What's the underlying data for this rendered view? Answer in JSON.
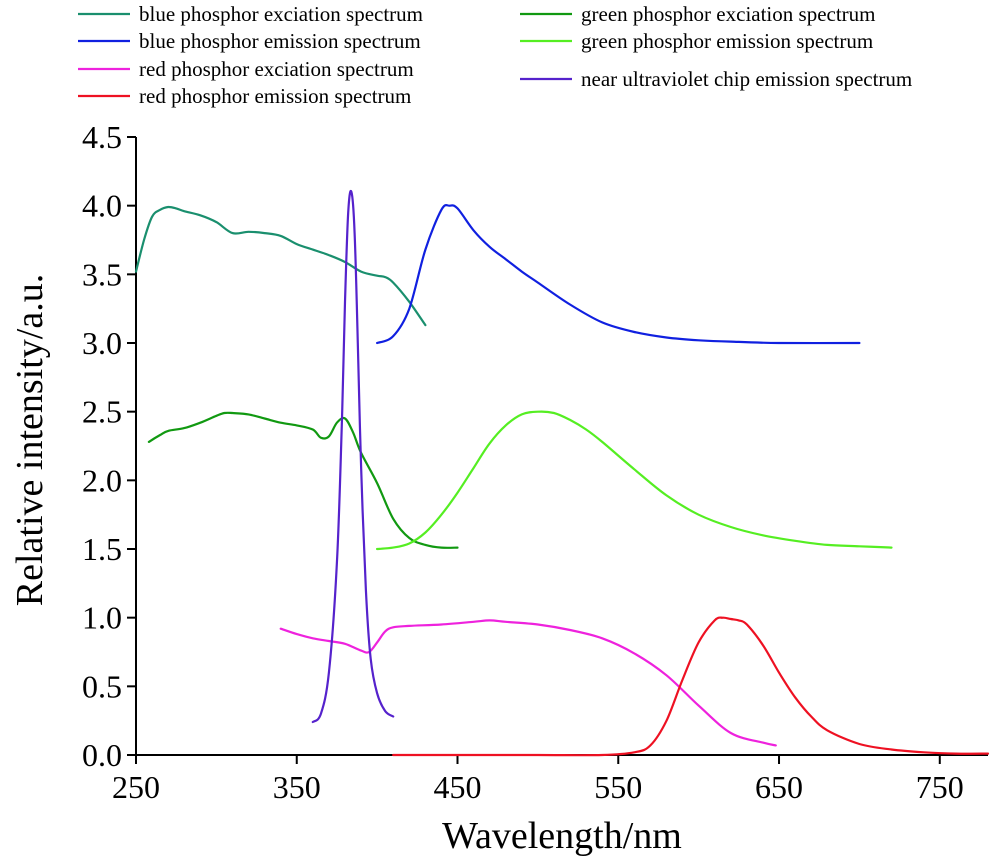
{
  "chart_data": {
    "type": "line",
    "xlabel": "Wavelength/nm",
    "ylabel": "Relative intensity/a.u.",
    "xlim": [
      250,
      780
    ],
    "ylim": [
      0,
      4.5
    ],
    "xticks": [
      "250",
      "350",
      "450",
      "550",
      "650",
      "750"
    ],
    "yticks": [
      "0.0",
      "0.5",
      "1.0",
      "1.5",
      "2.0",
      "2.5",
      "3.0",
      "3.5",
      "4.0",
      "4.5"
    ],
    "grid": false,
    "legend_position": "top",
    "series": [
      {
        "name": "blue phosphor exciation spectrum",
        "color": "#1a8f6e",
        "x": [
          250,
          255,
          260,
          265,
          270,
          275,
          280,
          290,
          300,
          310,
          320,
          330,
          340,
          350,
          360,
          370,
          380,
          390,
          400,
          405,
          410,
          420,
          430
        ],
        "y": [
          3.52,
          3.75,
          3.92,
          3.97,
          3.99,
          3.98,
          3.96,
          3.93,
          3.88,
          3.8,
          3.81,
          3.8,
          3.78,
          3.72,
          3.68,
          3.64,
          3.59,
          3.52,
          3.49,
          3.48,
          3.44,
          3.3,
          3.13
        ]
      },
      {
        "name": "blue phosphor emission spectrum",
        "color": "#1020e0",
        "x": [
          400,
          410,
          420,
          430,
          440,
          445,
          450,
          460,
          470,
          480,
          490,
          500,
          520,
          540,
          560,
          580,
          600,
          620,
          650,
          700
        ],
        "y": [
          3.0,
          3.05,
          3.25,
          3.68,
          3.97,
          4.0,
          3.98,
          3.82,
          3.7,
          3.61,
          3.52,
          3.44,
          3.28,
          3.15,
          3.08,
          3.04,
          3.02,
          3.01,
          3.0,
          3.0
        ]
      },
      {
        "name": "red phosphor exciation spectrum",
        "color": "#ee22dd",
        "x": [
          340,
          350,
          360,
          370,
          380,
          390,
          395,
          400,
          405,
          410,
          420,
          440,
          460,
          470,
          480,
          500,
          520,
          540,
          560,
          580,
          600,
          620,
          640,
          648
        ],
        "y": [
          0.92,
          0.88,
          0.85,
          0.83,
          0.81,
          0.76,
          0.75,
          0.82,
          0.9,
          0.93,
          0.94,
          0.95,
          0.97,
          0.98,
          0.97,
          0.95,
          0.91,
          0.85,
          0.74,
          0.58,
          0.36,
          0.16,
          0.09,
          0.07
        ]
      },
      {
        "name": "red phosphor emission spectrum",
        "color": "#ee1122",
        "x": [
          410,
          450,
          500,
          540,
          560,
          570,
          580,
          590,
          600,
          610,
          615,
          620,
          625,
          630,
          640,
          650,
          660,
          670,
          680,
          700,
          720,
          740,
          760,
          780
        ],
        "y": [
          0.0,
          0.0,
          0.0,
          0.0,
          0.02,
          0.07,
          0.25,
          0.55,
          0.82,
          0.98,
          1.0,
          0.99,
          0.98,
          0.95,
          0.8,
          0.6,
          0.42,
          0.28,
          0.18,
          0.08,
          0.04,
          0.02,
          0.01,
          0.01
        ]
      },
      {
        "name": "green phosphor exciation spectrum",
        "color": "#119911",
        "x": [
          258,
          265,
          270,
          280,
          290,
          300,
          305,
          310,
          320,
          330,
          340,
          350,
          360,
          365,
          370,
          375,
          380,
          385,
          390,
          400,
          410,
          420,
          430,
          440,
          450
        ],
        "y": [
          2.28,
          2.33,
          2.36,
          2.38,
          2.42,
          2.47,
          2.49,
          2.49,
          2.48,
          2.45,
          2.42,
          2.4,
          2.37,
          2.31,
          2.32,
          2.42,
          2.45,
          2.35,
          2.2,
          1.98,
          1.72,
          1.58,
          1.53,
          1.51,
          1.51
        ]
      },
      {
        "name": "green phosphor emission spectrum",
        "color": "#55ee22",
        "x": [
          400,
          410,
          420,
          430,
          440,
          450,
          460,
          470,
          480,
          490,
          500,
          510,
          520,
          530,
          540,
          560,
          580,
          600,
          620,
          640,
          660,
          680,
          700,
          720
        ],
        "y": [
          1.5,
          1.51,
          1.54,
          1.62,
          1.75,
          1.91,
          2.09,
          2.27,
          2.4,
          2.48,
          2.5,
          2.49,
          2.44,
          2.37,
          2.28,
          2.08,
          1.89,
          1.75,
          1.66,
          1.6,
          1.56,
          1.53,
          1.52,
          1.51
        ]
      },
      {
        "name": "near ultraviolet chip emission spectrum",
        "color": "#5522cc",
        "x": [
          360,
          365,
          370,
          375,
          378,
          380,
          382,
          384,
          386,
          388,
          390,
          393,
          396,
          400,
          405,
          410
        ],
        "y": [
          0.24,
          0.3,
          0.6,
          1.4,
          2.4,
          3.3,
          3.95,
          4.1,
          3.8,
          3.0,
          2.1,
          1.2,
          0.7,
          0.45,
          0.32,
          0.28
        ]
      }
    ]
  }
}
